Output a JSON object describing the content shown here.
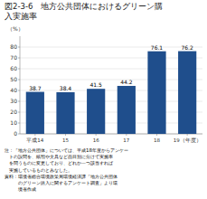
{
  "chart_data": {
    "type": "bar",
    "title": "図2-3-6　地方公共団体におけるグリーン購\n入実施率",
    "ylabel": "（%）",
    "categories": [
      "平成14",
      "15",
      "16",
      "17",
      "18",
      "19（年度）"
    ],
    "values": [
      38.7,
      38.4,
      41.5,
      44.2,
      76.1,
      76.2
    ],
    "color": "#1f4e8c",
    "ylim": [
      0,
      90
    ],
    "yticks": [
      0,
      10,
      20,
      30,
      40,
      50,
      60,
      70,
      80
    ],
    "grid": true,
    "data_labels": true,
    "annotations": [
      "注：「地方公共団体」については、平成18年度からアンケー",
      "　トの設問を、紙類や文具など品目別に分けて実施率",
      "　を問うものに変更しており、どれか一つ該当すれば",
      "　実施しているものとみなした。",
      "資料：環境省総合環境政策局環境経済課「地方公共団体",
      "　　　のグリーン購入に関するアンケート調査」より環",
      "　　　境省作成"
    ]
  }
}
